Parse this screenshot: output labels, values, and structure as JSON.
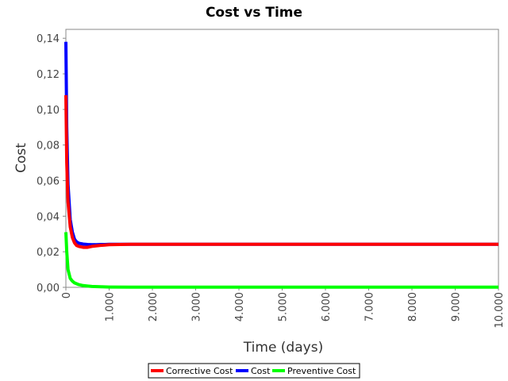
{
  "chart_data": {
    "type": "line",
    "title": "Cost vs Time",
    "xlabel": "Time (days)",
    "ylabel": "Cost",
    "xlim": [
      0,
      10000
    ],
    "ylim": [
      0,
      0.145
    ],
    "x_ticks": [
      0,
      1000,
      2000,
      3000,
      4000,
      5000,
      6000,
      7000,
      8000,
      9000,
      10000
    ],
    "x_tick_labels": [
      "0",
      "1.000",
      "2.000",
      "3.000",
      "4.000",
      "5.000",
      "6.000",
      "7.000",
      "8.000",
      "9.000",
      "10.000"
    ],
    "y_ticks": [
      0,
      0.02,
      0.04,
      0.06,
      0.08,
      0.1,
      0.12,
      0.14
    ],
    "y_tick_labels": [
      "0,00",
      "0,02",
      "0,04",
      "0,06",
      "0,08",
      "0,10",
      "0,12",
      "0,14"
    ],
    "grid": false,
    "legend_position": "bottom",
    "series": [
      {
        "name": "Corrective Cost",
        "color": "#ff0000",
        "x": [
          0,
          20,
          50,
          100,
          150,
          200,
          250,
          300,
          400,
          500,
          600,
          700,
          800,
          900,
          1000,
          1500,
          2000,
          3000,
          4000,
          5000,
          6000,
          7000,
          8000,
          9000,
          10000
        ],
        "y": [
          0.108,
          0.07,
          0.048,
          0.034,
          0.028,
          0.025,
          0.0235,
          0.023,
          0.0225,
          0.0225,
          0.023,
          0.0233,
          0.0236,
          0.0238,
          0.024,
          0.0242,
          0.0242,
          0.0242,
          0.0242,
          0.0242,
          0.0242,
          0.0242,
          0.0242,
          0.0242,
          0.0242
        ]
      },
      {
        "name": "Cost",
        "color": "#0000ff",
        "x": [
          0,
          20,
          50,
          100,
          150,
          200,
          250,
          300,
          400,
          500,
          600,
          700,
          800,
          900,
          1000,
          1500,
          2000,
          3000,
          4000,
          5000,
          6000,
          7000,
          8000,
          9000,
          10000
        ],
        "y": [
          0.138,
          0.09,
          0.058,
          0.038,
          0.031,
          0.027,
          0.0255,
          0.0248,
          0.0243,
          0.0241,
          0.024,
          0.024,
          0.0241,
          0.0241,
          0.0242,
          0.0242,
          0.0242,
          0.0242,
          0.0242,
          0.0242,
          0.0242,
          0.0242,
          0.0242,
          0.0242,
          0.0242
        ]
      },
      {
        "name": "Preventive Cost",
        "color": "#00ff00",
        "x": [
          0,
          20,
          50,
          100,
          150,
          200,
          300,
          400,
          500,
          600,
          800,
          1000,
          1500,
          2000,
          3000,
          4000,
          5000,
          6000,
          7000,
          8000,
          9000,
          10000
        ],
        "y": [
          0.031,
          0.02,
          0.01,
          0.005,
          0.0035,
          0.0025,
          0.0015,
          0.001,
          0.0007,
          0.0005,
          0.0003,
          0.0002,
          0.0001,
          0.0001,
          0.0001,
          0.0001,
          0.0001,
          0.0001,
          0.0001,
          0.0001,
          0.0001,
          0.0001
        ]
      }
    ]
  }
}
